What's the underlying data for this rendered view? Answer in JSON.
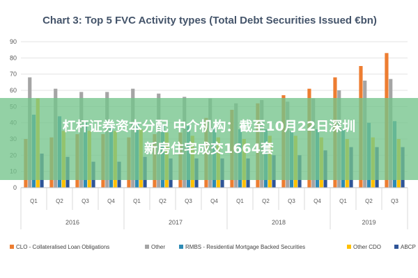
{
  "chart_data": {
    "type": "bar",
    "title": "Chart 3: Top 5 FVC Activity types (Total Debt Securities Issued €bn)",
    "xlabel": "",
    "ylabel": "",
    "ylim": [
      0,
      90
    ],
    "yticks": [
      0,
      10,
      20,
      30,
      40,
      50,
      60,
      70,
      80,
      90
    ],
    "grid": true,
    "legend_position": "bottom",
    "categories": [
      "Q1",
      "Q2",
      "Q3",
      "Q4",
      "Q1",
      "Q2",
      "Q3",
      "Q4",
      "Q1",
      "Q2",
      "Q3",
      "Q4",
      "Q1",
      "Q2",
      "Q3"
    ],
    "year_groups": [
      {
        "label": "2016",
        "count": 4
      },
      {
        "label": "2017",
        "count": 4
      },
      {
        "label": "2018",
        "count": 4
      },
      {
        "label": "2019",
        "count": 3
      }
    ],
    "series": [
      {
        "name": "CLO - Collateralised Loan Obligations",
        "color": "#ed7d31",
        "values": [
          30,
          31,
          33,
          33,
          31,
          33,
          34,
          43,
          48,
          52,
          57,
          61,
          68,
          75,
          83
        ]
      },
      {
        "name": "Other",
        "color": "#a5a5a5",
        "values": [
          68,
          61,
          59,
          59,
          61,
          58,
          56,
          55,
          52,
          54,
          53,
          55,
          60,
          66,
          67
        ]
      },
      {
        "name": "RMBS - Residential Mortgage Backed Securities",
        "color": "#2e8bb5",
        "values": [
          45,
          44,
          40,
          38,
          40,
          39,
          38,
          37,
          36,
          36,
          35,
          36,
          36,
          40,
          41
        ]
      },
      {
        "name": "Other CDO",
        "color": "#ffc000",
        "values": [
          55,
          35,
          35,
          35,
          36,
          34,
          32,
          31,
          30,
          32,
          32,
          31,
          30,
          31,
          30
        ]
      },
      {
        "name": "ABCP",
        "color": "#2f5597",
        "values": [
          21,
          19,
          16,
          16,
          19,
          18,
          18,
          18,
          18,
          20,
          20,
          23,
          25,
          25,
          25
        ]
      }
    ]
  },
  "overlay": {
    "line1": "杠杆证券资本分配 中介机构：截至10月22日深圳",
    "line2": "新房住宅成交1664套"
  }
}
